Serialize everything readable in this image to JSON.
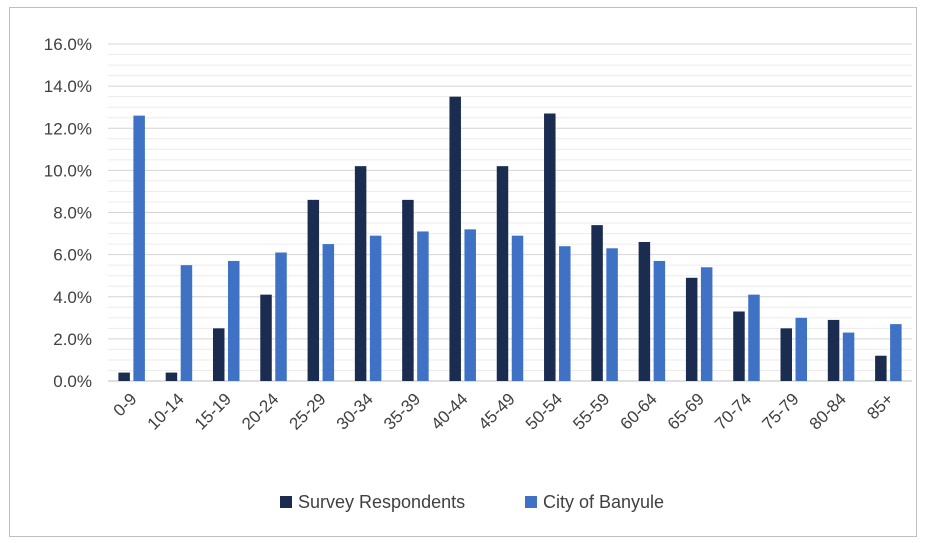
{
  "chart_data": {
    "type": "bar",
    "categories": [
      "0-9",
      "10-14",
      "15-19",
      "20-24",
      "25-29",
      "30-34",
      "35-39",
      "40-44",
      "45-49",
      "50-54",
      "55-59",
      "60-64",
      "65-69",
      "70-74",
      "75-79",
      "80-84",
      "85+"
    ],
    "series": [
      {
        "name": "Survey Respondents",
        "color": "#1a2c50",
        "values": [
          0.4,
          0.4,
          2.5,
          4.1,
          8.6,
          10.2,
          8.6,
          13.5,
          10.2,
          12.7,
          7.4,
          6.6,
          4.9,
          3.3,
          2.5,
          2.9,
          1.2
        ]
      },
      {
        "name": "City of Banyule",
        "color": "#3f71c4",
        "values": [
          12.6,
          5.5,
          5.7,
          6.1,
          6.5,
          6.9,
          7.1,
          7.2,
          6.9,
          6.4,
          6.3,
          5.7,
          5.4,
          4.1,
          3.0,
          2.3,
          2.7
        ]
      }
    ],
    "yticks": [
      "0.0%",
      "2.0%",
      "4.0%",
      "6.0%",
      "8.0%",
      "10.0%",
      "12.0%",
      "14.0%",
      "16.0%"
    ],
    "ylim": [
      0,
      16
    ],
    "grid": true,
    "legend_position": "bottom"
  }
}
